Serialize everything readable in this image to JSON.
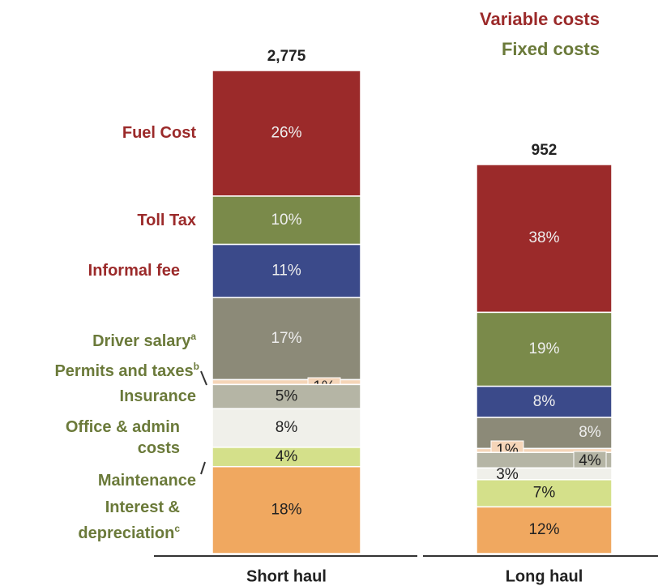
{
  "chart_data": {
    "type": "stacked_bar_percent",
    "categories": [
      "Short haul",
      "Long haul"
    ],
    "totals": [
      2775,
      952
    ],
    "total_labels": [
      "2,775",
      "952"
    ],
    "legend": [
      {
        "name": "Variable costs",
        "color": "#9b2a2a"
      },
      {
        "name": "Fixed costs",
        "color": "#6b7a3a"
      }
    ],
    "series": [
      {
        "name": "Fuel Cost",
        "color": "#9b2a2a",
        "label_color": "#9b2a2a",
        "values": [
          26,
          38
        ],
        "value_labels": [
          "26%",
          "38%"
        ]
      },
      {
        "name": "Toll Tax",
        "color": "#7a8a4a",
        "label_color": "#9b2a2a",
        "values": [
          10,
          19
        ],
        "value_labels": [
          "10%",
          "19%"
        ]
      },
      {
        "name": "Informal fee",
        "color": "#3b4a8a",
        "label_color": "#9b2a2a",
        "values": [
          11,
          8
        ],
        "value_labels": [
          "11%",
          "8%"
        ]
      },
      {
        "name": "Driver salary",
        "note": "a",
        "color": "#8c8a78",
        "label_color": "#6b7a3a",
        "values": [
          17,
          8
        ],
        "value_labels": [
          "17%",
          "8%"
        ]
      },
      {
        "name": "Permits and taxes",
        "note": "b",
        "color": "#f5d5b8",
        "label_color": "#6b7a3a",
        "values": [
          1,
          1
        ],
        "value_labels": [
          "1%",
          "1%"
        ]
      },
      {
        "name": "Insurance",
        "color": "#b5b5a5",
        "label_color": "#6b7a3a",
        "values": [
          5,
          4
        ],
        "value_labels": [
          "5%",
          "4%"
        ]
      },
      {
        "name": "Office & admin costs",
        "color": "#f0f0ea",
        "label_color": "#6b7a3a",
        "values": [
          8,
          3
        ],
        "value_labels": [
          "8%",
          "3%"
        ]
      },
      {
        "name": "Maintenance",
        "color": "#d4e08a",
        "label_color": "#6b7a3a",
        "values": [
          4,
          7
        ],
        "value_labels": [
          "4%",
          "7%"
        ]
      },
      {
        "name": "Interest & depreciation",
        "note": "c",
        "color": "#f0a860",
        "label_color": "#6b7a3a",
        "values": [
          18,
          12
        ],
        "value_labels": [
          "18%",
          "12%"
        ]
      }
    ]
  }
}
